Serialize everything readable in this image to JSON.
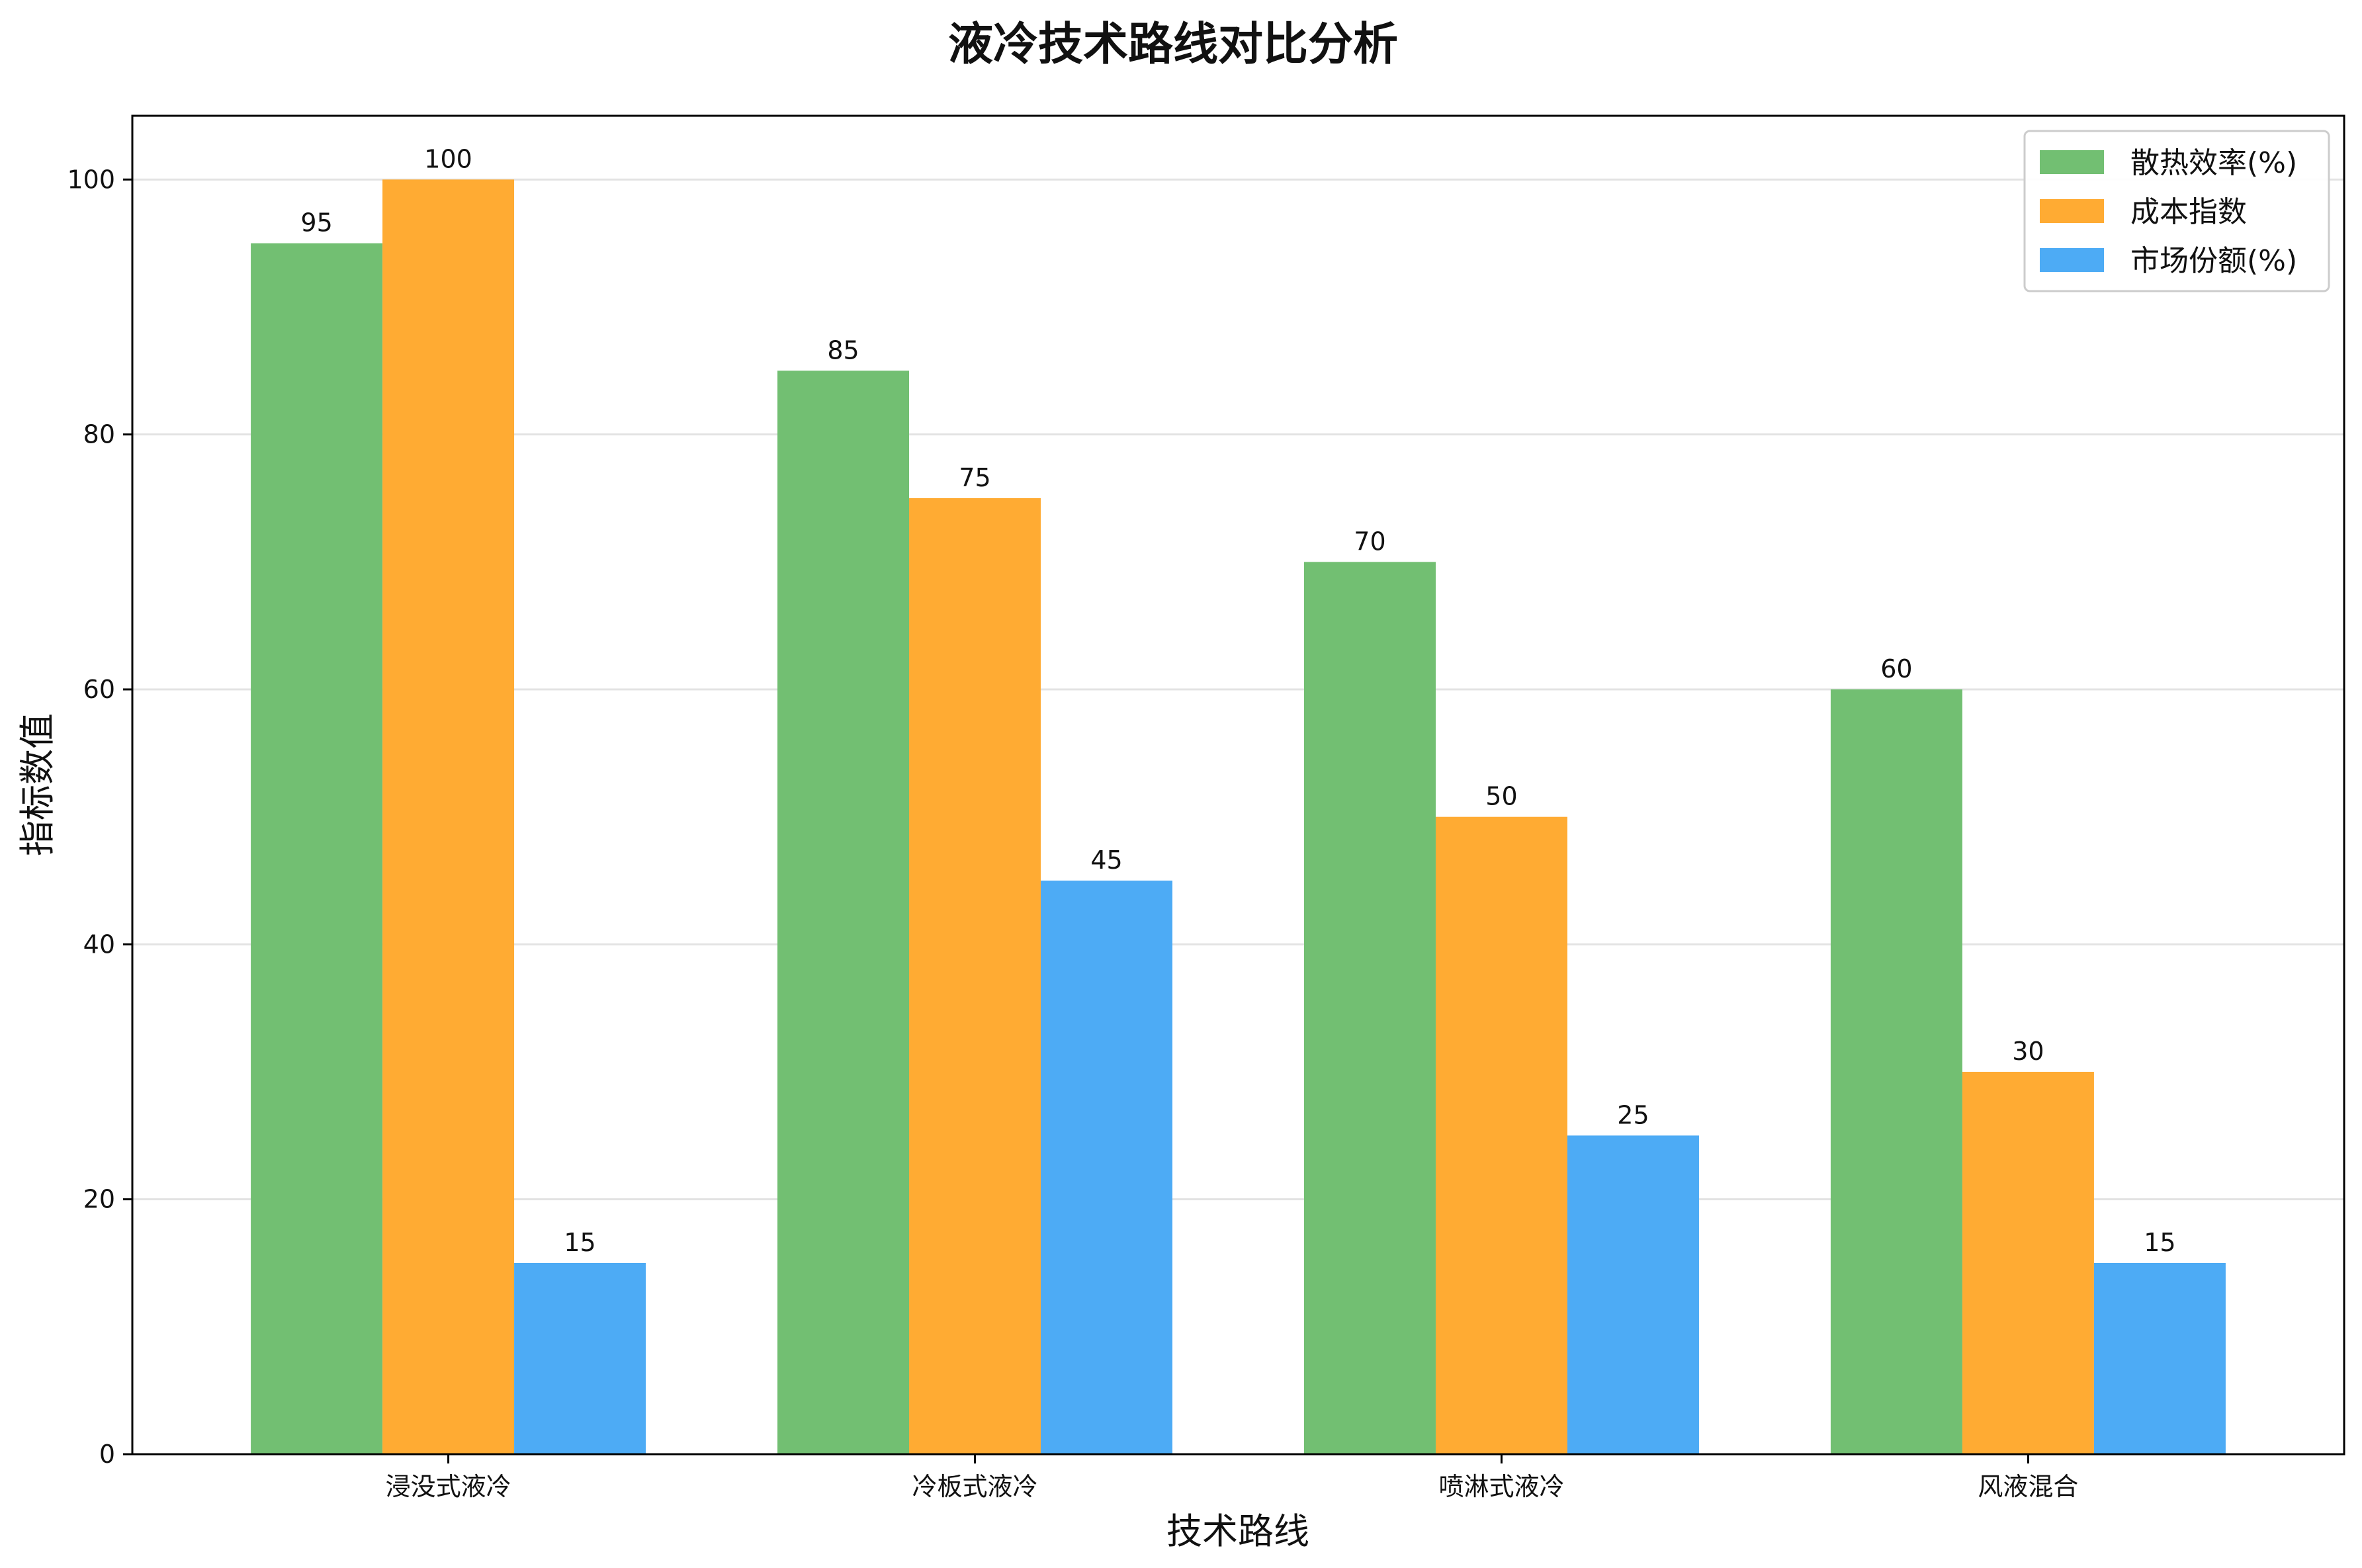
{
  "chart_data": {
    "type": "bar",
    "title": "液冷技术路线对比分析",
    "xlabel": "技术路线",
    "ylabel": "指标数值",
    "categories": [
      "浸没式液冷",
      "冷板式液冷",
      "喷淋式液冷",
      "风液混合"
    ],
    "series": [
      {
        "name": "散热效率(%)",
        "values": [
          95,
          85,
          70,
          60
        ],
        "color": "#72bf72"
      },
      {
        "name": "成本指数",
        "values": [
          100,
          75,
          50,
          30
        ],
        "color": "#ffab33"
      },
      {
        "name": "市场份额(%)",
        "values": [
          15,
          45,
          25,
          15
        ],
        "color": "#4dabf5"
      }
    ],
    "ylim": [
      0,
      105
    ],
    "yticks": [
      0,
      20,
      40,
      60,
      80,
      100
    ],
    "grid": "y",
    "legend_position": "top-right"
  }
}
